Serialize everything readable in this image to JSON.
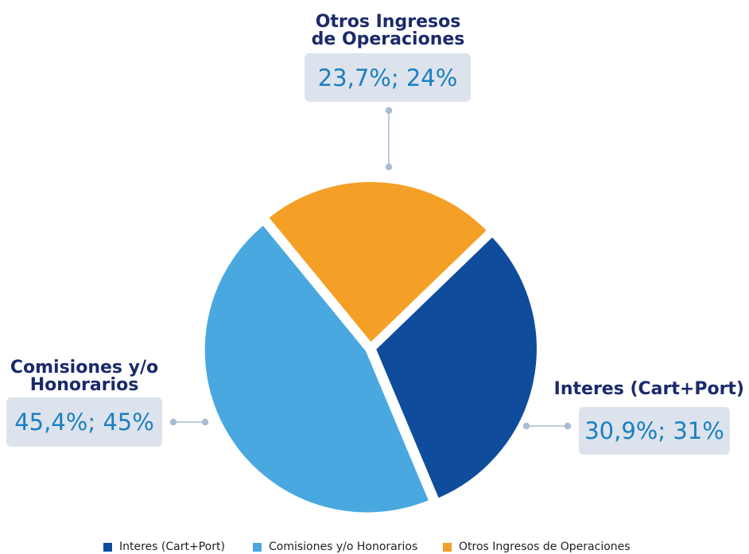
{
  "chart_data": {
    "type": "pie",
    "categories": [
      "Interes (Cart+Port)",
      "Comisiones y/o Honorarios",
      "Otros Ingresos de Operaciones"
    ],
    "values": [
      30.9,
      45.4,
      23.7
    ],
    "value_labels": [
      "30,9%; 31%",
      "45,4%; 45%",
      "23,7%; 24%"
    ],
    "colors": [
      "#0f4c9c",
      "#4aa8e0",
      "#f4a026"
    ],
    "legend": "bottom"
  }
}
